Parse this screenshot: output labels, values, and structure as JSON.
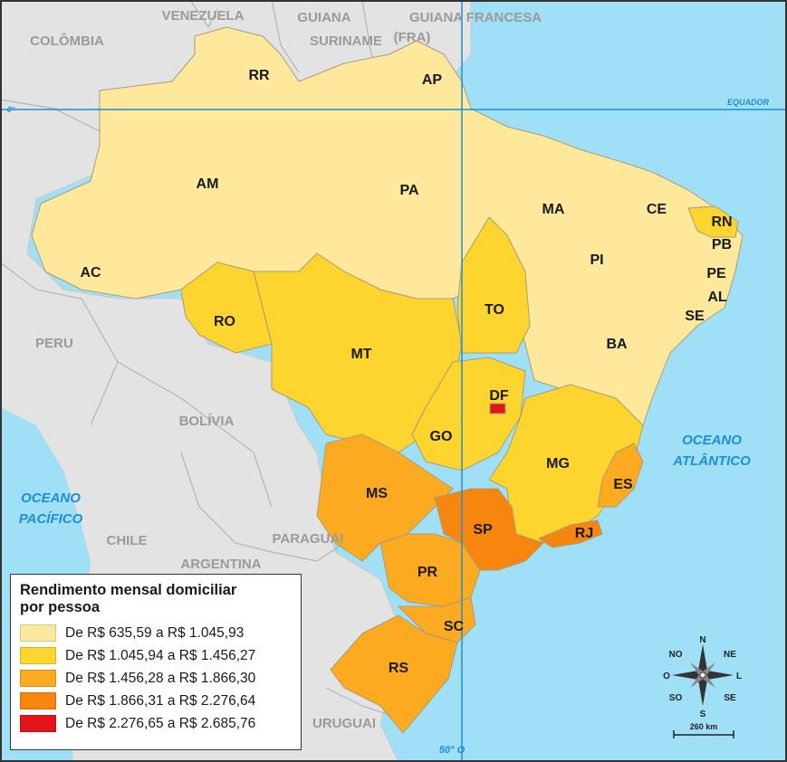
{
  "map": {
    "colors": {
      "ocean": "#9fe0f7",
      "neighbor": "#e3e3e3",
      "class1": "#fde89c",
      "class2": "#fed42e",
      "class3": "#fcaa1f",
      "class4": "#f7860f",
      "class5": "#e3141c",
      "line": "#1c8fd6"
    },
    "states": [
      {
        "uf": "RR",
        "class": 1
      },
      {
        "uf": "AP",
        "class": 1
      },
      {
        "uf": "AM",
        "class": 1
      },
      {
        "uf": "PA",
        "class": 1
      },
      {
        "uf": "AC",
        "class": 1
      },
      {
        "uf": "MA",
        "class": 1
      },
      {
        "uf": "CE",
        "class": 1
      },
      {
        "uf": "PI",
        "class": 1
      },
      {
        "uf": "PB",
        "class": 1
      },
      {
        "uf": "PE",
        "class": 1
      },
      {
        "uf": "AL",
        "class": 1
      },
      {
        "uf": "SE",
        "class": 1
      },
      {
        "uf": "BA",
        "class": 1
      },
      {
        "uf": "RN",
        "class": 2
      },
      {
        "uf": "RO",
        "class": 2
      },
      {
        "uf": "MT",
        "class": 2
      },
      {
        "uf": "TO",
        "class": 2
      },
      {
        "uf": "GO",
        "class": 2
      },
      {
        "uf": "MG",
        "class": 2
      },
      {
        "uf": "MS",
        "class": 3
      },
      {
        "uf": "ES",
        "class": 3
      },
      {
        "uf": "PR",
        "class": 3
      },
      {
        "uf": "SC",
        "class": 3
      },
      {
        "uf": "RS",
        "class": 3
      },
      {
        "uf": "SP",
        "class": 4
      },
      {
        "uf": "RJ",
        "class": 4
      },
      {
        "uf": "DF",
        "class": 5
      }
    ],
    "countries": [
      "VENEZUELA",
      "GUIANA",
      "GUIANA FRANCESA",
      "(FRA)",
      "COLÔMBIA",
      "SURINAME",
      "PERU",
      "BOLÍVIA",
      "CHILE",
      "ARGENTINA",
      "PARAGUAI",
      "URUGUAI"
    ],
    "oceans": {
      "atlantic_1": "OCEANO",
      "atlantic_2": "ATLÂNTICO",
      "pacific_1": "OCEANO",
      "pacific_2": "PACÍFICO"
    },
    "lines": {
      "equator_label": "EQUADOR",
      "equator_degree": "0°",
      "meridian_label": "50° O"
    },
    "compass": {
      "n": "N",
      "s": "S",
      "l": "L",
      "o": "O",
      "ne": "NE",
      "no": "NO",
      "se": "SE",
      "so": "SO"
    },
    "scale_label": "260 km"
  },
  "legend": {
    "title_line1": "Rendimento mensal domiciliar",
    "title_line2": "por pessoa",
    "items": [
      {
        "label": "De R$ 635,59 a R$ 1.045,93",
        "color": "#fde89c"
      },
      {
        "label": "De R$ 1.045,94 a R$ 1.456,27",
        "color": "#fed42e"
      },
      {
        "label": "De R$ 1.456,28 a R$ 1.866,30",
        "color": "#fcaa1f"
      },
      {
        "label": "De R$ 1.866,31 a R$ 2.276,64",
        "color": "#f7860f"
      },
      {
        "label": "De R$ 2.276,65 a R$ 2.685,76",
        "color": "#e3141c"
      }
    ]
  }
}
